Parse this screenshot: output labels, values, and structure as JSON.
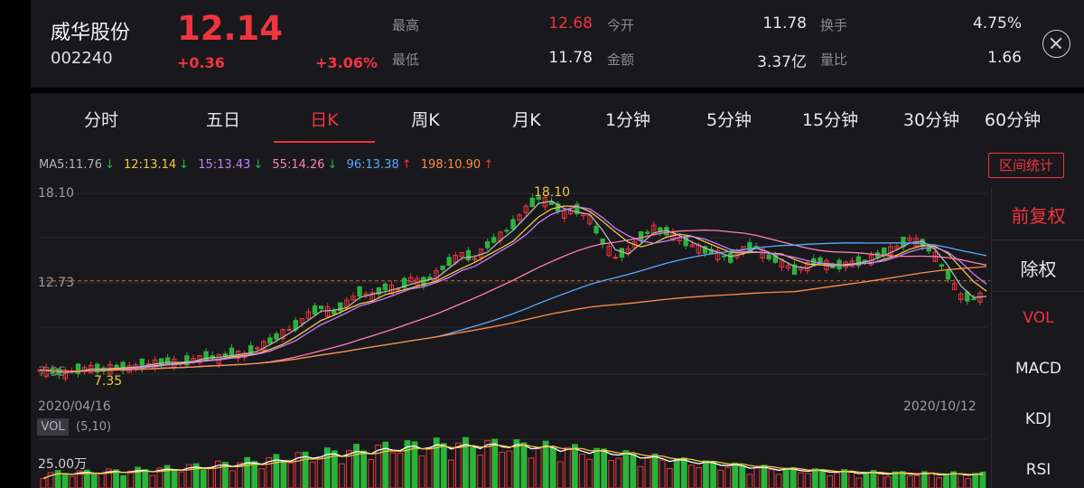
{
  "stock": {
    "name": "威华股份",
    "code": "002240",
    "price": "12.14",
    "change": "+0.36",
    "change_pct": "+3.06%"
  },
  "quote": {
    "high_label": "最高",
    "high": "12.68",
    "low_label": "最低",
    "low": "11.78",
    "open_label": "今开",
    "open": "11.78",
    "amount_label": "金额",
    "amount": "3.37亿",
    "turnover_label": "换手",
    "turnover": "4.75%",
    "vol_ratio_label": "量比",
    "vol_ratio": "1.66"
  },
  "tabs": [
    "分时",
    "五日",
    "日K",
    "周K",
    "月K",
    "1分钟",
    "5分钟",
    "15分钟",
    "30分钟",
    "60分钟"
  ],
  "active_tab": "日K",
  "ma_legend": [
    {
      "text": "MA5:11.76",
      "arrow": "↓",
      "color": "#b4b4b8"
    },
    {
      "text": "12:13.14",
      "arrow": "↓",
      "color": "#f5c542"
    },
    {
      "text": "15:13.43",
      "arrow": "↓",
      "color": "#c77dff"
    },
    {
      "text": "55:14.26",
      "arrow": "↓",
      "color": "#ff7eb6"
    },
    {
      "text": "96:13.38",
      "arrow": "↑",
      "color": "#5aa9ff"
    },
    {
      "text": "198:10.90",
      "arrow": "↑",
      "color": "#ff8c42"
    }
  ],
  "range_stats_button": "区间统计",
  "axis": {
    "y_top": "18.10",
    "y_mid": "12.73",
    "y_low": "7.35",
    "date_start": "2020/04/16",
    "date_end": "2020/10/12",
    "max_marker": "18.10",
    "min_marker": "7.35",
    "vol_tick": "25.00万"
  },
  "side_menu": {
    "items": [
      "前复权",
      "除权",
      "VOL",
      "MACD",
      "KDJ",
      "RSI"
    ],
    "active": [
      "前复权",
      "VOL"
    ]
  },
  "volume": {
    "tag": "VOL",
    "params": "(5,10)"
  },
  "colors": {
    "up": "#f0343e",
    "down": "#2cb33a",
    "background": "#19191d",
    "ma5": "#b4b4b8",
    "ma12": "#f5c542",
    "ma15": "#c77dff",
    "ma55": "#ff7eb6",
    "ma96": "#5aa9ff",
    "ma198": "#ff8c42"
  },
  "chart_data": {
    "type": "candlestick",
    "x_start": "2020/04/16",
    "x_end": "2020/10/12",
    "y_range": [
      7.35,
      18.1
    ],
    "y_ticks": [
      18.1,
      12.73,
      7.35
    ],
    "last_close": 12.14,
    "period_high": 18.1,
    "period_low": 7.35,
    "series": [
      {
        "name": "MA5",
        "last": 11.76
      },
      {
        "name": "12",
        "last": 13.14
      },
      {
        "name": "15",
        "last": 13.43
      },
      {
        "name": "55",
        "last": 14.26
      },
      {
        "name": "96",
        "last": 13.38
      },
      {
        "name": "198",
        "last": 10.9
      }
    ],
    "close_path": [
      7.6,
      7.5,
      7.4,
      7.6,
      7.7,
      7.6,
      7.8,
      7.7,
      7.9,
      8.0,
      8.1,
      8.0,
      8.2,
      8.4,
      8.3,
      8.6,
      8.5,
      8.9,
      9.3,
      9.8,
      10.2,
      10.9,
      11.3,
      11.0,
      11.6,
      12.2,
      12.0,
      12.5,
      12.4,
      13.0,
      12.8,
      13.3,
      14.0,
      14.5,
      14.2,
      15.0,
      15.6,
      16.2,
      17.2,
      17.8,
      17.5,
      16.9,
      17.1,
      16.6,
      15.2,
      14.3,
      14.7,
      15.5,
      16.0,
      15.8,
      15.4,
      15.0,
      14.7,
      14.5,
      14.2,
      14.8,
      14.9,
      14.3,
      14.0,
      13.5,
      13.8,
      14.1,
      13.7,
      13.9,
      14.0,
      14.2,
      14.6,
      14.9,
      15.4,
      15.1,
      14.4,
      13.2,
      12.0,
      11.8,
      12.14
    ],
    "volume_unit": "万",
    "volume_tick": 25.0
  }
}
